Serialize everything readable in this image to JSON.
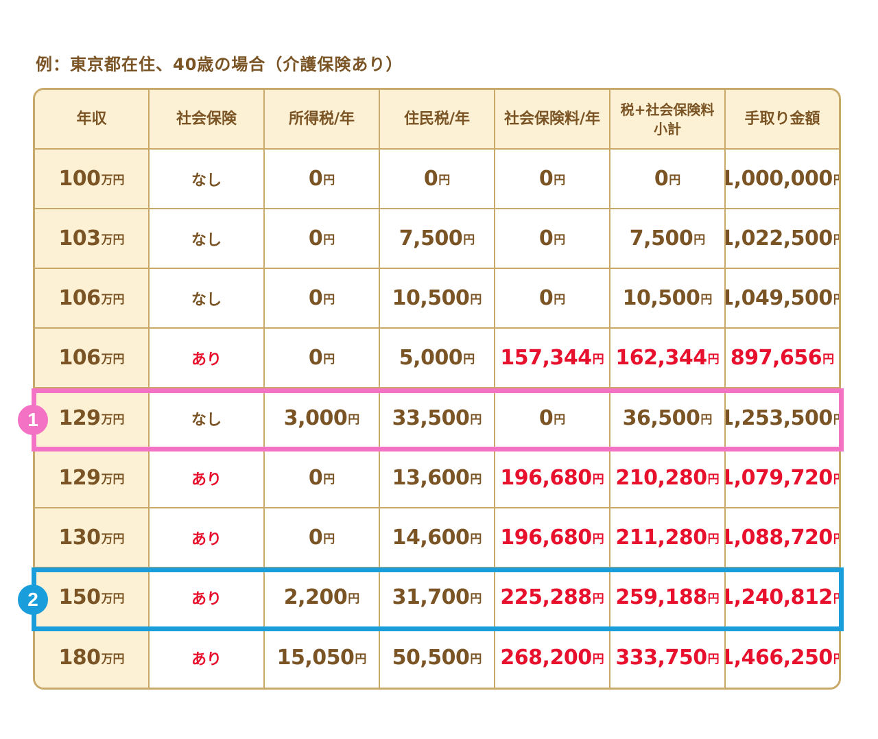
{
  "caption": "例：東京都在住、40歳の場合（介護保険あり）",
  "unit_man": "万円",
  "unit_yen": "円",
  "headers": [
    {
      "line1": "年収",
      "line2": ""
    },
    {
      "line1": "社会保険",
      "line2": ""
    },
    {
      "line1": "所得税/年",
      "line2": ""
    },
    {
      "line1": "住民税/年",
      "line2": ""
    },
    {
      "line1": "社会保険料/年",
      "line2": ""
    },
    {
      "line1": "税+社会保険料",
      "line2": "小計"
    },
    {
      "line1": "手取り金額",
      "line2": ""
    }
  ],
  "rows": [
    {
      "income": "100",
      "insurance": "なし",
      "income_tax": "0",
      "resident_tax": "0",
      "social": "0",
      "subtotal": "0",
      "takehome": "1,000,000"
    },
    {
      "income": "103",
      "insurance": "なし",
      "income_tax": "0",
      "resident_tax": "7,500",
      "social": "0",
      "subtotal": "7,500",
      "takehome": "1,022,500"
    },
    {
      "income": "106",
      "insurance": "なし",
      "income_tax": "0",
      "resident_tax": "10,500",
      "social": "0",
      "subtotal": "10,500",
      "takehome": "1,049,500"
    },
    {
      "income": "106",
      "insurance": "あり",
      "income_tax": "0",
      "resident_tax": "5,000",
      "social": "157,344",
      "subtotal": "162,344",
      "takehome": "897,656"
    },
    {
      "income": "129",
      "insurance": "なし",
      "income_tax": "3,000",
      "resident_tax": "33,500",
      "social": "0",
      "subtotal": "36,500",
      "takehome": "1,253,500"
    },
    {
      "income": "129",
      "insurance": "あり",
      "income_tax": "0",
      "resident_tax": "13,600",
      "social": "196,680",
      "subtotal": "210,280",
      "takehome": "1,079,720"
    },
    {
      "income": "130",
      "insurance": "あり",
      "income_tax": "0",
      "resident_tax": "14,600",
      "social": "196,680",
      "subtotal": "211,280",
      "takehome": "1,088,720"
    },
    {
      "income": "150",
      "insurance": "あり",
      "income_tax": "2,200",
      "resident_tax": "31,700",
      "social": "225,288",
      "subtotal": "259,188",
      "takehome": "1,240,812"
    },
    {
      "income": "180",
      "insurance": "あり",
      "income_tax": "15,050",
      "resident_tax": "50,500",
      "social": "268,200",
      "subtotal": "333,750",
      "takehome": "1,466,250"
    }
  ],
  "badges": {
    "first": "1",
    "second": "2"
  },
  "colors": {
    "brown": "#7a5424",
    "red": "#e8112d",
    "header_bg": "#fcf1d5",
    "border": "#c9a96a",
    "pink": "#f472c4",
    "blue": "#1a9ddb"
  }
}
